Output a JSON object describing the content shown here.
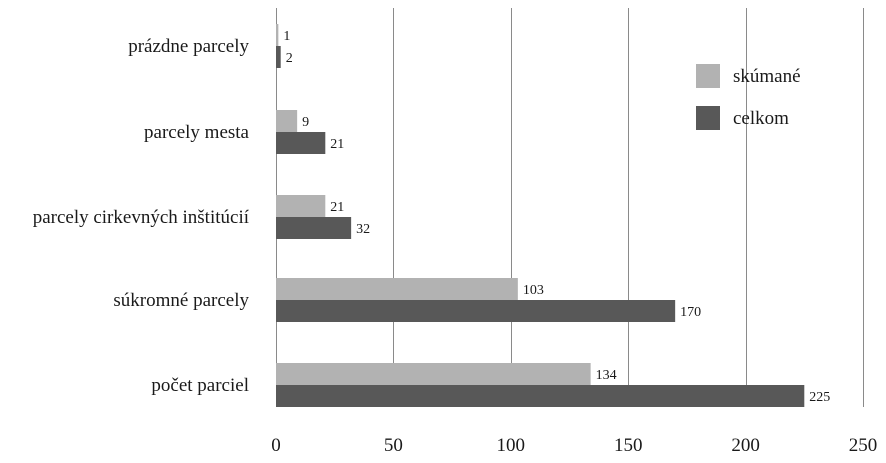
{
  "chart_data": {
    "type": "bar",
    "orientation": "horizontal",
    "categories": [
      "prázdne parcely",
      "parcely mesta",
      "parcely cirkevných inštitúcií",
      "súkromné parcely",
      "počet parciel"
    ],
    "series": [
      {
        "name": "skúmané",
        "values": [
          1,
          9,
          21,
          103,
          134
        ],
        "color": "#b2b2b2"
      },
      {
        "name": "celkom",
        "values": [
          2,
          21,
          32,
          170,
          225
        ],
        "color": "#585858"
      }
    ],
    "xlim": [
      0,
      250
    ],
    "xticks": [
      0,
      50,
      100,
      150,
      200,
      250
    ],
    "grid": true,
    "legend": "top-right",
    "title": "",
    "xlabel": "",
    "ylabel": ""
  }
}
